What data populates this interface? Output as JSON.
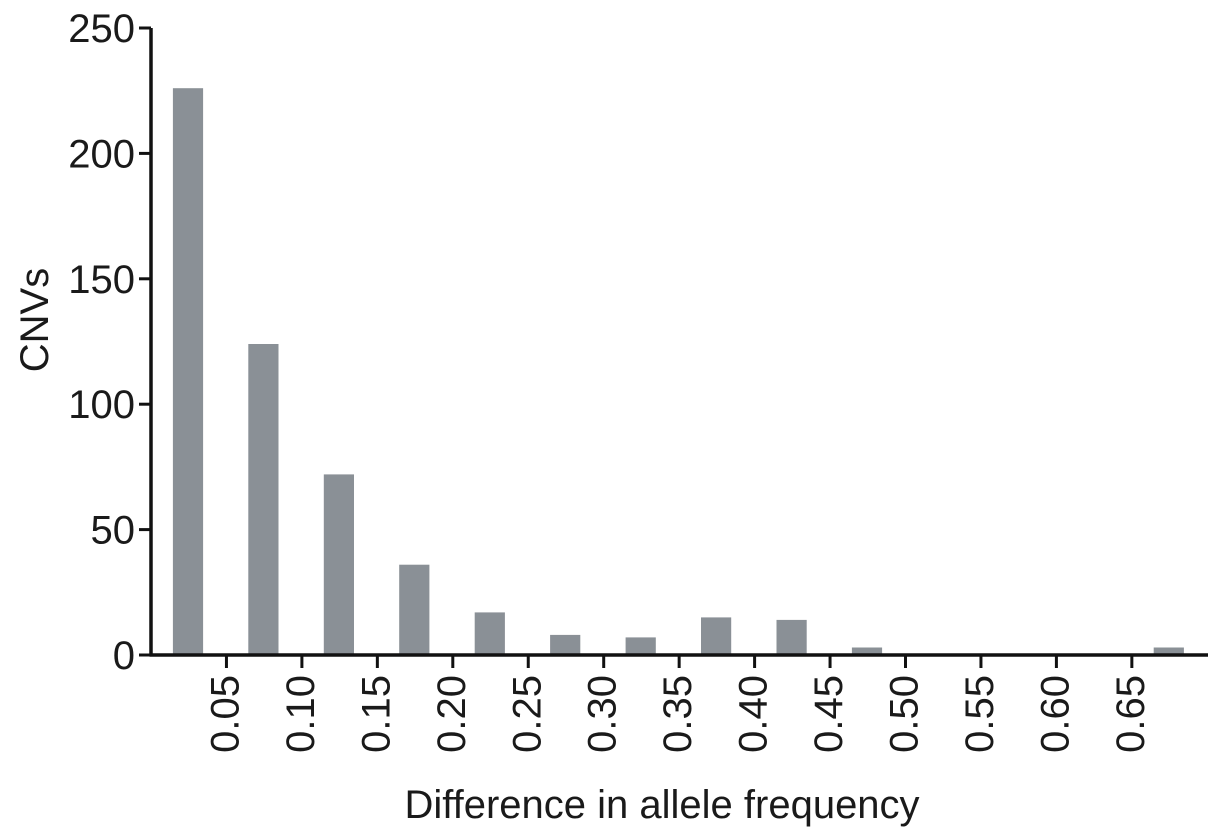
{
  "chart_data": {
    "type": "bar",
    "title": "",
    "xlabel": "Difference in allele frequency",
    "ylabel": "CNVs",
    "ylim": [
      0,
      250
    ],
    "y_ticks": [
      "0",
      "50",
      "100",
      "150",
      "200",
      "250"
    ],
    "x_ticks": [
      "0.05",
      "0.10",
      "0.15",
      "0.20",
      "0.25",
      "0.30",
      "0.35",
      "0.40",
      "0.45",
      "0.50",
      "0.55",
      "0.60",
      "0.65"
    ],
    "categories": [
      "0.00-0.05",
      "0.05-0.10",
      "0.10-0.15",
      "0.15-0.20",
      "0.20-0.25",
      "0.25-0.30",
      "0.30-0.35",
      "0.35-0.40",
      "0.40-0.45",
      "0.45-0.50",
      "0.50-0.55",
      "0.55-0.60",
      "0.60-0.65",
      "0.65-0.70"
    ],
    "values": [
      226,
      124,
      72,
      36,
      17,
      8,
      7,
      15,
      14,
      3,
      0,
      0,
      0,
      3
    ],
    "bar_color": "#8a9096",
    "grid": false,
    "legend": "none"
  }
}
